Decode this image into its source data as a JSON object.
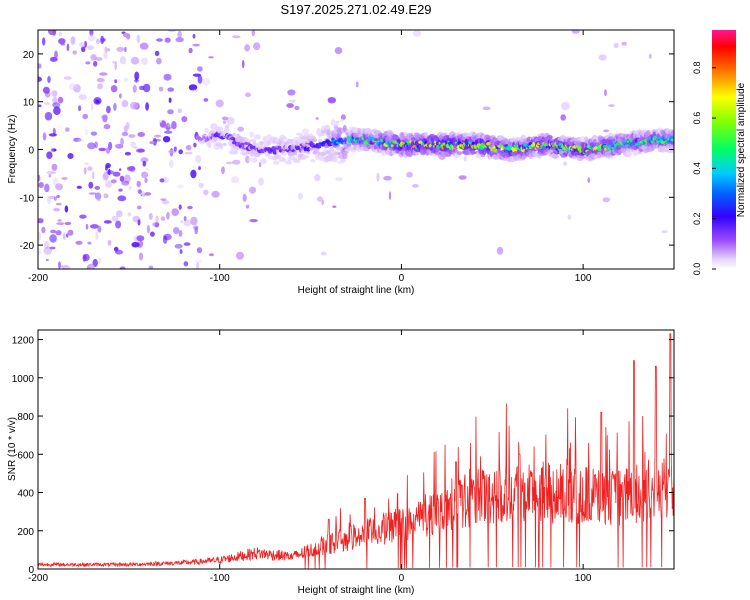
{
  "figure_title": "S197.2025.271.02.49.E29",
  "colors": {
    "snr_line": "#ee2222",
    "background": "#ffffff",
    "frame": "#000000"
  },
  "chart_data": [
    {
      "type": "heatmap",
      "title": "S197.2025.271.02.49.E29",
      "xlabel": "Height of straight line (km)",
      "ylabel": "Frequency (Hz)",
      "xlim": [
        -200,
        150
      ],
      "ylim": [
        -25,
        25
      ],
      "xticks": [
        -200,
        -100,
        0,
        100
      ],
      "yticks": [
        -20,
        -10,
        0,
        10,
        20
      ],
      "xtick_labels": [
        "-200",
        "-100",
        "0",
        "100"
      ],
      "ytick_labels": [
        "-20",
        "-10",
        "0",
        "10",
        "20"
      ],
      "colorbar": {
        "label": "Normalized spectral amplitude",
        "range": [
          0,
          0.95
        ],
        "ticks": [
          0.0,
          0.2,
          0.4,
          0.6,
          0.8
        ],
        "tick_labels": [
          "0.0",
          "0.2",
          "0.4",
          "0.6",
          "0.8"
        ],
        "colormap": "rainbow (white-violet-blue-cyan-green-yellow-red-magenta)"
      },
      "ridge": {
        "description": "Coherent signal concentrated near 0-3 Hz for heights above about -30 km; diffuse weak energy spread over all frequencies below about -110 km.",
        "heights": [
          -110,
          -100,
          -80,
          -60,
          -45,
          -30,
          -20,
          0,
          20,
          40,
          60,
          80,
          100,
          120,
          140,
          150
        ],
        "center_frequency": [
          2,
          3,
          0,
          0,
          1,
          2,
          2,
          1,
          1,
          1,
          0,
          1,
          0,
          1,
          2,
          2
        ],
        "peak_amplitude": [
          0.12,
          0.2,
          0.18,
          0.2,
          0.25,
          0.45,
          0.55,
          0.75,
          0.8,
          0.8,
          0.7,
          0.72,
          0.7,
          0.62,
          0.6,
          0.55
        ]
      }
    },
    {
      "type": "line",
      "xlabel": "Height of straight line (km)",
      "ylabel": "SNR (10 * v/v)",
      "xlim": [
        -200,
        150
      ],
      "ylim": [
        0,
        1250
      ],
      "xticks": [
        -200,
        -100,
        0,
        100
      ],
      "yticks": [
        0,
        200,
        400,
        600,
        800,
        1000,
        1200
      ],
      "xtick_labels": [
        "-200",
        "-100",
        "0",
        "100"
      ],
      "ytick_labels": [
        "0",
        "200",
        "400",
        "600",
        "800",
        "1000",
        "1200"
      ],
      "series": [
        {
          "name": "SNR",
          "envelope_x": [
            -200,
            -150,
            -120,
            -100,
            -80,
            -60,
            -40,
            -20,
            0,
            20,
            40,
            60,
            80,
            100,
            120,
            140,
            150
          ],
          "envelope_y": [
            25,
            25,
            35,
            50,
            90,
            70,
            140,
            200,
            250,
            330,
            400,
            450,
            430,
            420,
            400,
            450,
            450
          ],
          "notable_peaks": [
            {
              "x": -40,
              "y": 260
            },
            {
              "x": -20,
              "y": 370
            },
            {
              "x": 30,
              "y": 560
            },
            {
              "x": 65,
              "y": 600
            },
            {
              "x": 110,
              "y": 820
            },
            {
              "x": 128,
              "y": 1090
            },
            {
              "x": 140,
              "y": 1060
            },
            {
              "x": 148,
              "y": 1230
            }
          ]
        }
      ]
    }
  ]
}
